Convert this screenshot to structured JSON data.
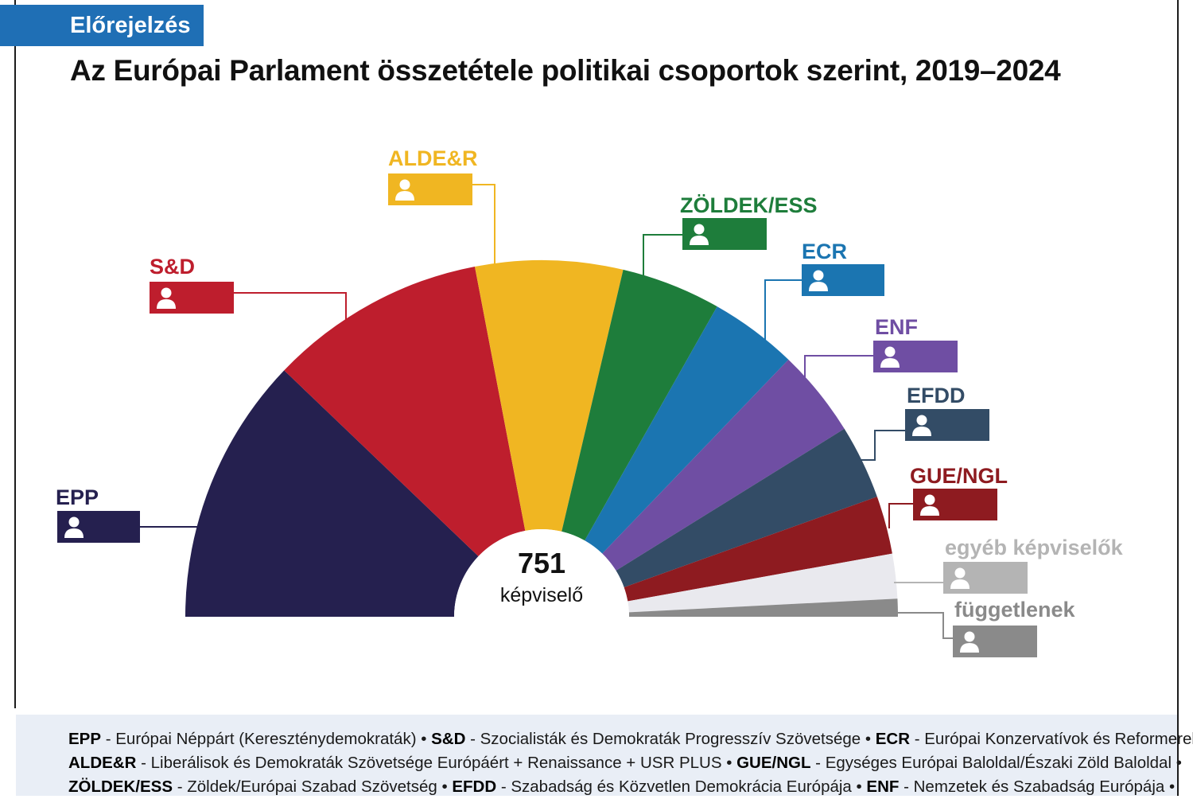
{
  "badge": "Előrejelzés",
  "title": "Az Európai Parlament összetétele politikai csoportok szerint, 2019–2024",
  "chart_data": {
    "type": "pie",
    "subtype": "half-donut (parliament)",
    "total_value": "751",
    "total_label": "képviselő",
    "groups": [
      {
        "name": "EPP",
        "value": 180,
        "color": "#25204f"
      },
      {
        "name": "S&D",
        "value": 146,
        "color": "#be1e2d"
      },
      {
        "name": "ALDE&R",
        "value": 99,
        "color": "#f0b622"
      },
      {
        "name": "ZÖLDEK/ESS",
        "value": 67,
        "color": "#1e7d3b"
      },
      {
        "name": "ECR",
        "value": 59,
        "color": "#1b75b1"
      },
      {
        "name": "ENF",
        "value": 59,
        "color": "#6f4ea3"
      },
      {
        "name": "EFDD",
        "value": 50,
        "color": "#334c66"
      },
      {
        "name": "GUE/NGL",
        "value": 39,
        "color": "#8e1b20"
      },
      {
        "name": "egyéb képviselők",
        "value": 30,
        "color": "#e9e9ee"
      },
      {
        "name": "függetlenek",
        "value": 12,
        "color": "#8a8a8a"
      }
    ],
    "label_colors": [
      "#25204f",
      "#be1e2d",
      "#f0b622",
      "#1e7d3b",
      "#1b75b1",
      "#6f4ea3",
      "#334c66",
      "#8e1b20",
      "#b4b4b4",
      "#8a8a8a"
    ],
    "box_colors": [
      "#25204f",
      "#be1e2d",
      "#f0b622",
      "#1e7d3b",
      "#1b75b1",
      "#6f4ea3",
      "#334c66",
      "#8e1b20",
      "#b4b4b4",
      "#8a8a8a"
    ]
  },
  "footer": {
    "line1": [
      {
        "abbr": "EPP",
        "desc": " - Európai Néppárt (Kereszténydemokraták) • "
      },
      {
        "abbr": "S&D",
        "desc": " - Szocialisták és Demokraták Progresszív Szövetsége • "
      },
      {
        "abbr": "ECR",
        "desc": " - Európai Konzervatívok és Reformerek •"
      }
    ],
    "line2": [
      {
        "abbr": "ALDE&R",
        "desc": " - Liberálisok és Demokraták Szövetsége Európáért + Renaissance + USR PLUS • "
      },
      {
        "abbr": "GUE/NGL",
        "desc": " - Egységes Európai Baloldal/Északi Zöld Baloldal •"
      }
    ],
    "line3": [
      {
        "abbr": "ZÖLDEK/ESS",
        "desc": " - Zöldek/Európai Szabad Szövetség • "
      },
      {
        "abbr": "EFDD",
        "desc": " - Szabadság és Közvetlen Demokrácia Európája • "
      },
      {
        "abbr": "ENF",
        "desc": " - Nemzetek és Szabadság Európája •"
      }
    ]
  }
}
